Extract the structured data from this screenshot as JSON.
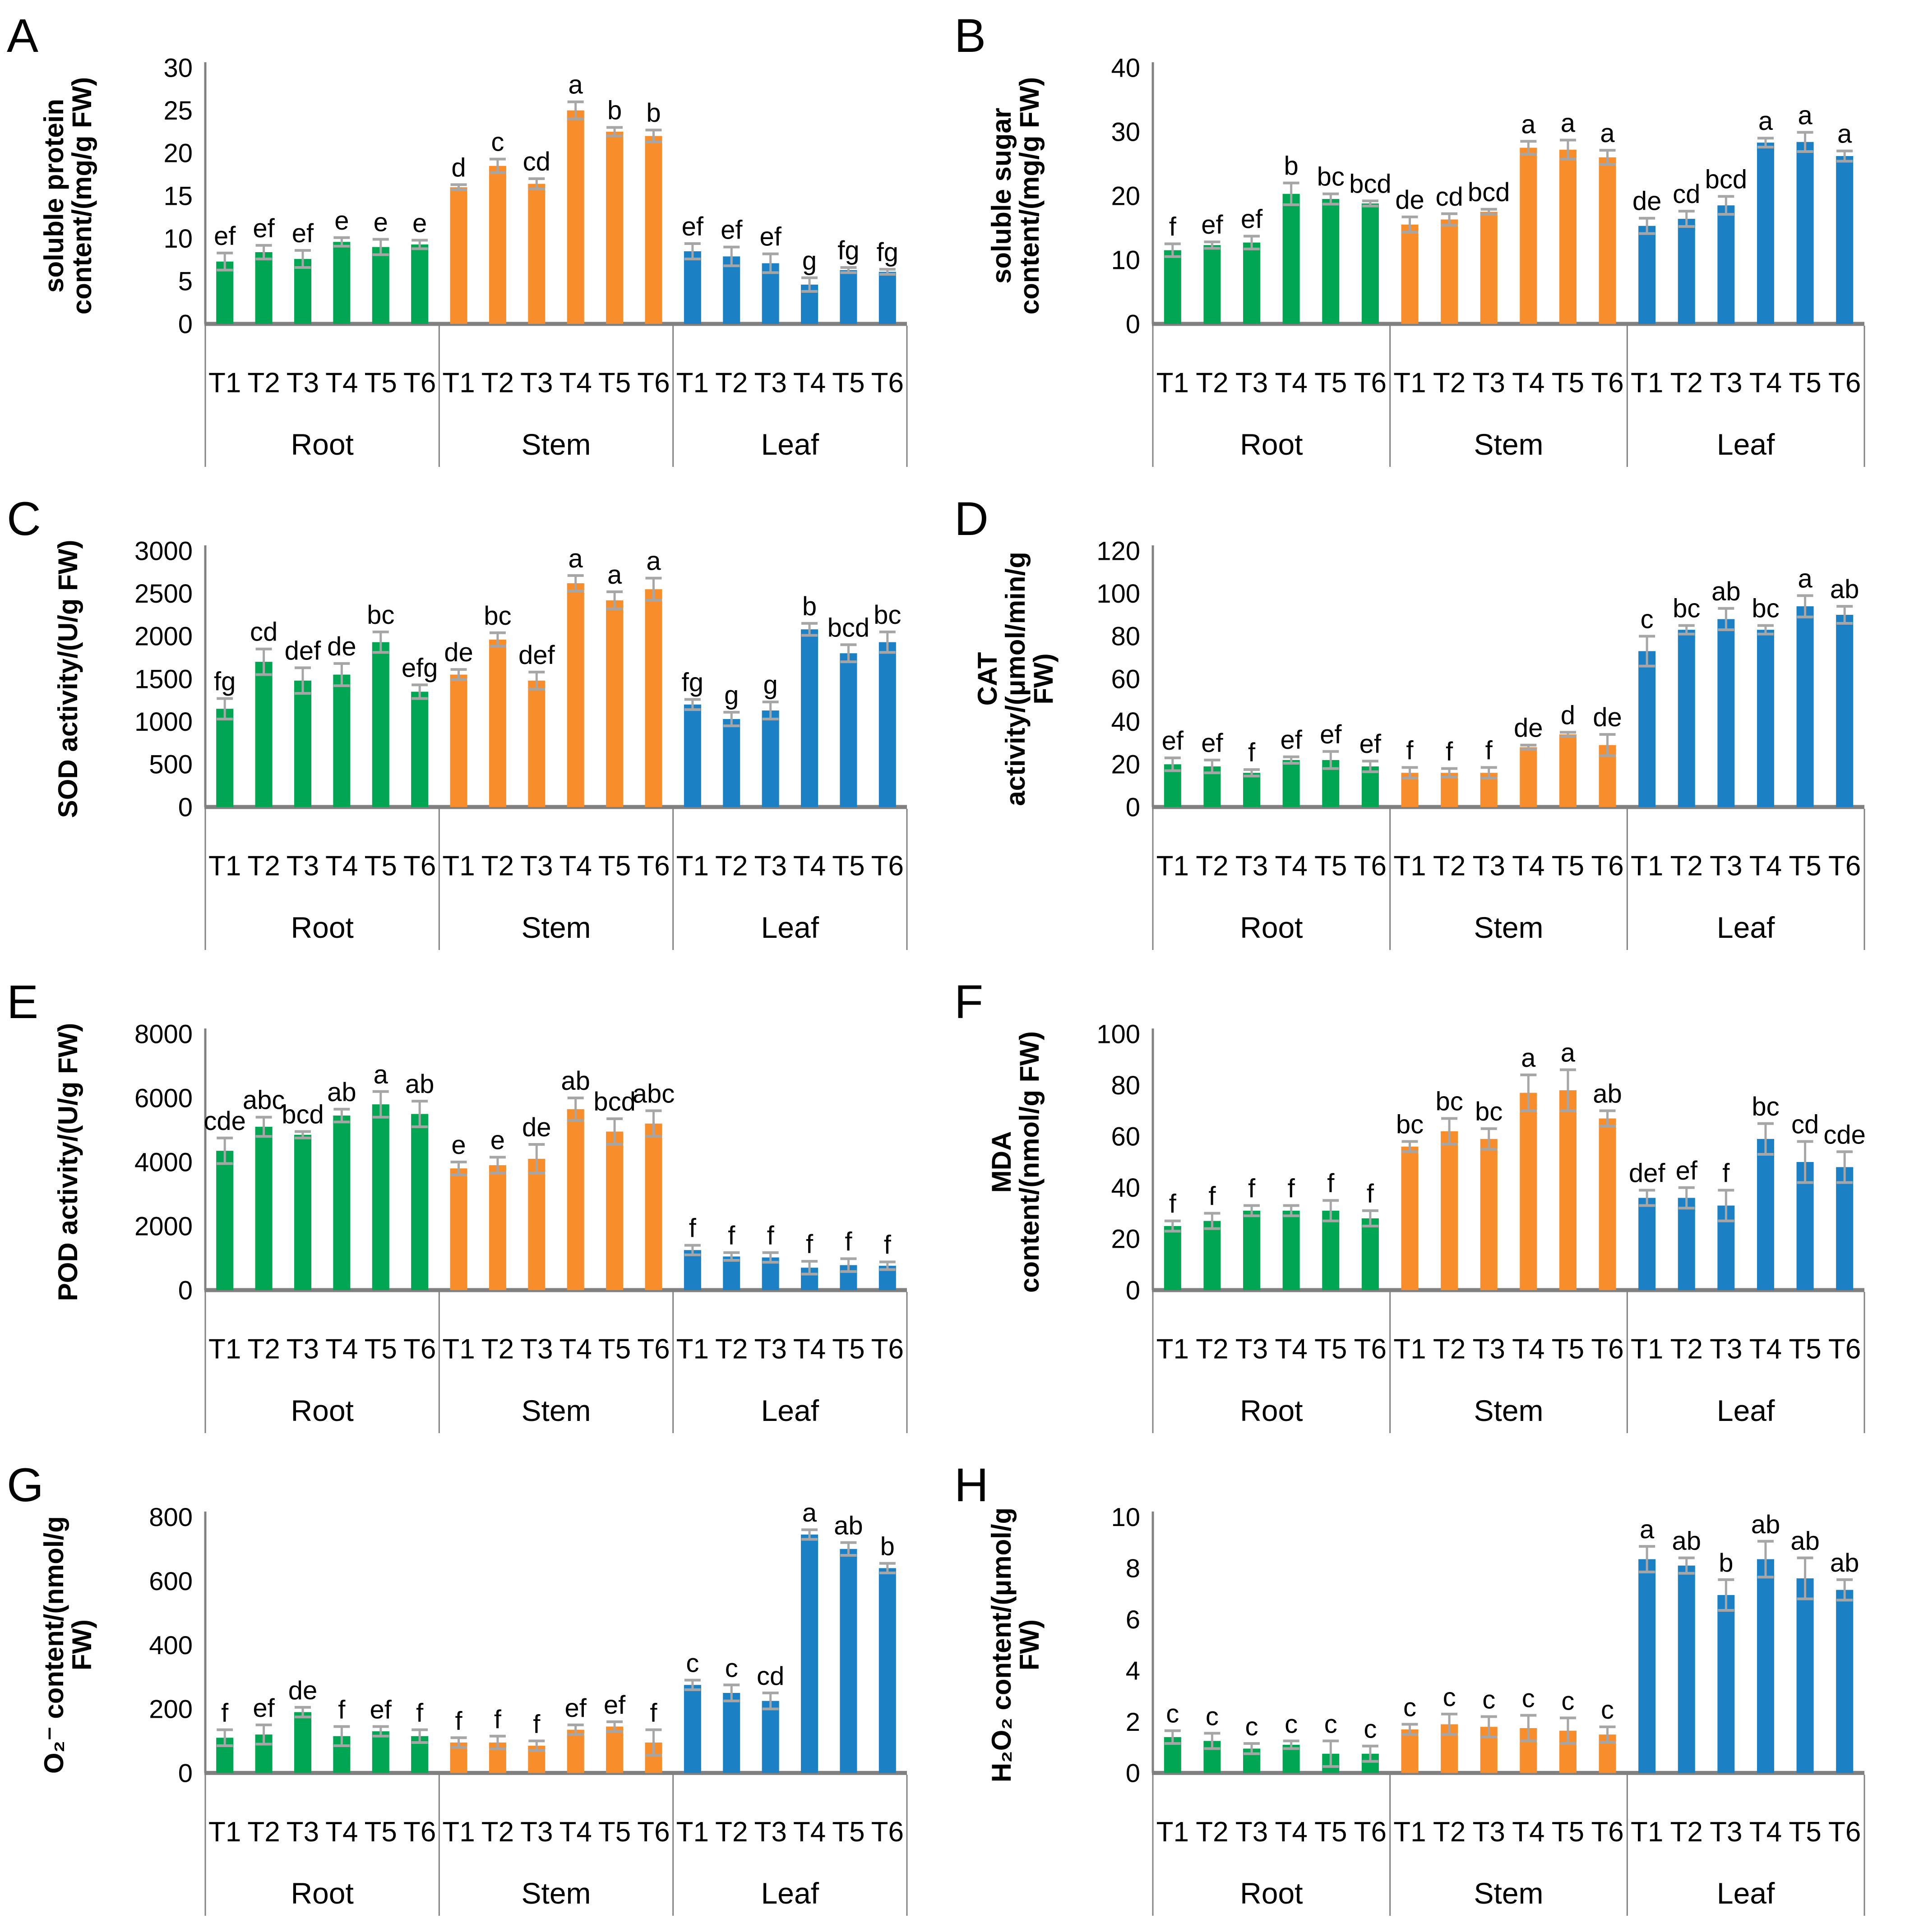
{
  "figure_title": "Physiological and biochemical indices in Root, Stem and Leaf under treatments T1-T6",
  "colors": {
    "series": {
      "Root": "#00A651",
      "Stem": "#F88E2B",
      "Leaf": "#1B80C4"
    },
    "axis": "#808080",
    "error_bar": "#A6A6A6",
    "text": "#000000",
    "background": "#ffffff"
  },
  "treatments": [
    "T1",
    "T2",
    "T3",
    "T4",
    "T5",
    "T6"
  ],
  "group_names": [
    "Root",
    "Stem",
    "Leaf"
  ],
  "chart_data": [
    {
      "panel": "A",
      "type": "bar",
      "title": "",
      "ylabel": "soluble protein content/(mg/g FW)",
      "ylabel_lines": [
        "soluble protein",
        "content/(mg/g FW)"
      ],
      "ylim": [
        0,
        30
      ],
      "yticks": [
        0,
        5,
        10,
        15,
        20,
        25,
        30
      ],
      "categories": [
        "T1",
        "T2",
        "T3",
        "T4",
        "T5",
        "T6"
      ],
      "grid": false,
      "legend": "none",
      "groups": [
        {
          "name": "Root",
          "color_key": "Root",
          "values": [
            7.3,
            8.4,
            7.6,
            9.6,
            9.0,
            9.3
          ],
          "errors": [
            1.0,
            0.8,
            1.0,
            0.5,
            0.9,
            0.5
          ],
          "letters": [
            "ef",
            "ef",
            "ef",
            "e",
            "e",
            "e"
          ]
        },
        {
          "name": "Stem",
          "color_key": "Stem",
          "values": [
            16.0,
            18.5,
            16.4,
            25.0,
            22.5,
            22.0
          ],
          "errors": [
            0.3,
            0.8,
            0.6,
            1.0,
            0.5,
            0.7
          ],
          "letters": [
            "d",
            "c",
            "cd",
            "a",
            "b",
            "b"
          ]
        },
        {
          "name": "Leaf",
          "color_key": "Leaf",
          "values": [
            8.5,
            7.9,
            7.1,
            4.6,
            6.3,
            6.1
          ],
          "errors": [
            0.9,
            1.1,
            1.1,
            0.8,
            0.3,
            0.3
          ],
          "letters": [
            "ef",
            "ef",
            "ef",
            "g",
            "fg",
            "fg"
          ]
        }
      ]
    },
    {
      "panel": "B",
      "type": "bar",
      "title": "",
      "ylabel": "soluble sugar content/(mg/g FW)",
      "ylabel_lines": [
        "soluble sugar",
        "content/(mg/g FW)"
      ],
      "ylim": [
        0,
        40
      ],
      "yticks": [
        0,
        10,
        20,
        30,
        40
      ],
      "categories": [
        "T1",
        "T2",
        "T3",
        "T4",
        "T5",
        "T6"
      ],
      "grid": false,
      "legend": "none",
      "groups": [
        {
          "name": "Root",
          "color_key": "Root",
          "values": [
            11.5,
            12.3,
            12.7,
            20.3,
            19.5,
            18.8
          ],
          "errors": [
            1.0,
            0.5,
            1.0,
            1.7,
            0.8,
            0.4
          ],
          "letters": [
            "f",
            "ef",
            "ef",
            "b",
            "bc",
            "bcd"
          ]
        },
        {
          "name": "Stem",
          "color_key": "Stem",
          "values": [
            15.5,
            16.3,
            17.5,
            27.5,
            27.2,
            26.0
          ],
          "errors": [
            1.2,
            0.9,
            0.4,
            1.0,
            1.5,
            1.1
          ],
          "letters": [
            "de",
            "cd",
            "bcd",
            "a",
            "a",
            "a"
          ]
        },
        {
          "name": "Leaf",
          "color_key": "Leaf",
          "values": [
            15.3,
            16.4,
            18.5,
            28.3,
            28.4,
            26.2
          ],
          "errors": [
            1.2,
            1.2,
            1.4,
            0.7,
            1.5,
            0.8
          ],
          "letters": [
            "de",
            "cd",
            "bcd",
            "a",
            "a",
            "a"
          ]
        }
      ]
    },
    {
      "panel": "C",
      "type": "bar",
      "title": "",
      "ylabel": "SOD activity/(U/g FW)",
      "ylabel_lines": [
        "SOD activity/(U/g FW)"
      ],
      "ylim": [
        0,
        3000
      ],
      "yticks": [
        0,
        500,
        1000,
        1500,
        2000,
        2500,
        3000
      ],
      "categories": [
        "T1",
        "T2",
        "T3",
        "T4",
        "T5",
        "T6"
      ],
      "grid": false,
      "legend": "none",
      "groups": [
        {
          "name": "Root",
          "color_key": "Root",
          "values": [
            1150,
            1700,
            1480,
            1550,
            1930,
            1350
          ],
          "errors": [
            120,
            150,
            150,
            130,
            120,
            80
          ],
          "letters": [
            "fg",
            "cd",
            "def",
            "de",
            "bc",
            "efg"
          ]
        },
        {
          "name": "Stem",
          "color_key": "Stem",
          "values": [
            1550,
            1960,
            1480,
            2620,
            2420,
            2550
          ],
          "errors": [
            60,
            80,
            100,
            90,
            100,
            130
          ],
          "letters": [
            "de",
            "bc",
            "def",
            "a",
            "a",
            "a"
          ]
        },
        {
          "name": "Leaf",
          "color_key": "Leaf",
          "values": [
            1200,
            1030,
            1130,
            2080,
            1800,
            1930
          ],
          "errors": [
            60,
            80,
            100,
            70,
            100,
            120
          ],
          "letters": [
            "fg",
            "g",
            "g",
            "b",
            "bcd",
            "bc"
          ]
        }
      ]
    },
    {
      "panel": "D",
      "type": "bar",
      "title": "",
      "ylabel": "CAT activity/(μmol/min/g FW)",
      "ylabel_lines": [
        "CAT",
        "activity/(μmol/min/g",
        "FW)"
      ],
      "ylim": [
        0,
        120
      ],
      "yticks": [
        0,
        20,
        40,
        60,
        80,
        100,
        120
      ],
      "categories": [
        "T1",
        "T2",
        "T3",
        "T4",
        "T5",
        "T6"
      ],
      "grid": false,
      "legend": "none",
      "groups": [
        {
          "name": "Root",
          "color_key": "Root",
          "values": [
            20,
            19,
            16,
            22,
            22,
            19
          ],
          "errors": [
            3,
            3,
            1.5,
            1.5,
            4,
            2.5
          ],
          "letters": [
            "ef",
            "ef",
            "f",
            "ef",
            "ef",
            "ef"
          ]
        },
        {
          "name": "Stem",
          "color_key": "Stem",
          "values": [
            16,
            16,
            16,
            28,
            34,
            29
          ],
          "errors": [
            2.5,
            2,
            2.5,
            1,
            1,
            5
          ],
          "letters": [
            "f",
            "f",
            "f",
            "de",
            "d",
            "de"
          ]
        },
        {
          "name": "Leaf",
          "color_key": "Leaf",
          "values": [
            73,
            83,
            88,
            83,
            94,
            90
          ],
          "errors": [
            7,
            2,
            5,
            2,
            5,
            4
          ],
          "letters": [
            "c",
            "bc",
            "ab",
            "bc",
            "a",
            "ab"
          ]
        }
      ]
    },
    {
      "panel": "E",
      "type": "bar",
      "title": "",
      "ylabel": "POD activity/(U/g FW)",
      "ylabel_lines": [
        "POD activity/(U/g FW)"
      ],
      "ylim": [
        0,
        8000
      ],
      "yticks": [
        0,
        2000,
        4000,
        6000,
        8000
      ],
      "categories": [
        "T1",
        "T2",
        "T3",
        "T4",
        "T5",
        "T6"
      ],
      "grid": false,
      "legend": "none",
      "groups": [
        {
          "name": "Root",
          "color_key": "Root",
          "values": [
            4350,
            5100,
            4850,
            5450,
            5800,
            5500
          ],
          "errors": [
            400,
            300,
            100,
            200,
            400,
            400
          ],
          "letters": [
            "cde",
            "abc",
            "bcd",
            "ab",
            "a",
            "ab"
          ]
        },
        {
          "name": "Stem",
          "color_key": "Stem",
          "values": [
            3800,
            3900,
            4100,
            5650,
            4950,
            5200
          ],
          "errors": [
            200,
            250,
            450,
            350,
            400,
            400
          ],
          "letters": [
            "e",
            "e",
            "de",
            "ab",
            "bcd",
            "abc"
          ]
        },
        {
          "name": "Leaf",
          "color_key": "Leaf",
          "values": [
            1250,
            1050,
            1020,
            700,
            780,
            760
          ],
          "errors": [
            150,
            120,
            150,
            200,
            200,
            120
          ],
          "letters": [
            "f",
            "f",
            "f",
            "f",
            "f",
            "f"
          ]
        }
      ]
    },
    {
      "panel": "F",
      "type": "bar",
      "title": "",
      "ylabel": "MDA content/(nmol/g FW)",
      "ylabel_lines": [
        "MDA",
        "content/(nmol/g FW)"
      ],
      "ylim": [
        0,
        100
      ],
      "yticks": [
        0,
        20,
        40,
        60,
        80,
        100
      ],
      "categories": [
        "T1",
        "T2",
        "T3",
        "T4",
        "T5",
        "T6"
      ],
      "grid": false,
      "legend": "none",
      "groups": [
        {
          "name": "Root",
          "color_key": "Root",
          "values": [
            25,
            27,
            31,
            31,
            31,
            28
          ],
          "errors": [
            2,
            3,
            2,
            2,
            4,
            3
          ],
          "letters": [
            "f",
            "f",
            "f",
            "f",
            "f",
            "f"
          ]
        },
        {
          "name": "Stem",
          "color_key": "Stem",
          "values": [
            56,
            62,
            59,
            77,
            78,
            67
          ],
          "errors": [
            2,
            5,
            4,
            7,
            8,
            3
          ],
          "letters": [
            "bc",
            "bc",
            "bc",
            "a",
            "a",
            "ab"
          ]
        },
        {
          "name": "Leaf",
          "color_key": "Leaf",
          "values": [
            36,
            36,
            33,
            59,
            50,
            48
          ],
          "errors": [
            3,
            4,
            6,
            6,
            8,
            6
          ],
          "letters": [
            "def",
            "ef",
            "f",
            "bc",
            "cd",
            "cde"
          ]
        }
      ]
    },
    {
      "panel": "G",
      "type": "bar",
      "title": "",
      "ylabel": "O₂⁻ content/(nmol/g FW)",
      "ylabel_lines": [
        "O₂⁻ content/(nmol/g",
        "FW)"
      ],
      "ylim": [
        0,
        800
      ],
      "yticks": [
        0,
        200,
        400,
        600,
        800
      ],
      "categories": [
        "T1",
        "T2",
        "T3",
        "T4",
        "T5",
        "T6"
      ],
      "grid": false,
      "legend": "none",
      "groups": [
        {
          "name": "Root",
          "color_key": "Root",
          "values": [
            110,
            120,
            190,
            115,
            130,
            115
          ],
          "errors": [
            25,
            30,
            15,
            30,
            15,
            20
          ],
          "letters": [
            "f",
            "ef",
            "de",
            "f",
            "ef",
            "f"
          ]
        },
        {
          "name": "Stem",
          "color_key": "Stem",
          "values": [
            95,
            95,
            85,
            135,
            145,
            95
          ],
          "errors": [
            15,
            20,
            15,
            15,
            15,
            40
          ],
          "letters": [
            "f",
            "f",
            "f",
            "ef",
            "ef",
            "f"
          ]
        },
        {
          "name": "Leaf",
          "color_key": "Leaf",
          "values": [
            275,
            250,
            225,
            745,
            700,
            640
          ],
          "errors": [
            15,
            25,
            25,
            15,
            20,
            15
          ],
          "letters": [
            "c",
            "c",
            "cd",
            "a",
            "ab",
            "b"
          ]
        }
      ]
    },
    {
      "panel": "H",
      "type": "bar",
      "title": "",
      "ylabel": "H₂O₂ content/(μmol/g FW)",
      "ylabel_lines": [
        "H₂O₂ content/(μmol/g",
        "FW)"
      ],
      "ylim": [
        0,
        10
      ],
      "yticks": [
        0,
        2,
        4,
        6,
        8,
        10
      ],
      "categories": [
        "T1",
        "T2",
        "T3",
        "T4",
        "T5",
        "T6"
      ],
      "grid": false,
      "legend": "none",
      "groups": [
        {
          "name": "Root",
          "color_key": "Root",
          "values": [
            1.4,
            1.25,
            0.95,
            1.1,
            0.75,
            0.75
          ],
          "errors": [
            0.25,
            0.3,
            0.2,
            0.15,
            0.5,
            0.3
          ],
          "letters": [
            "c",
            "c",
            "c",
            "c",
            "c",
            "c"
          ]
        },
        {
          "name": "Stem",
          "color_key": "Stem",
          "values": [
            1.7,
            1.9,
            1.8,
            1.75,
            1.65,
            1.5
          ],
          "errors": [
            0.2,
            0.4,
            0.4,
            0.5,
            0.5,
            0.3
          ],
          "letters": [
            "c",
            "c",
            "c",
            "c",
            "c",
            "c"
          ]
        },
        {
          "name": "Leaf",
          "color_key": "Leaf",
          "values": [
            8.35,
            8.1,
            6.95,
            8.35,
            7.6,
            7.15
          ],
          "errors": [
            0.5,
            0.3,
            0.6,
            0.7,
            0.8,
            0.4
          ],
          "letters": [
            "a",
            "ab",
            "b",
            "ab",
            "ab",
            "ab"
          ]
        }
      ]
    }
  ]
}
